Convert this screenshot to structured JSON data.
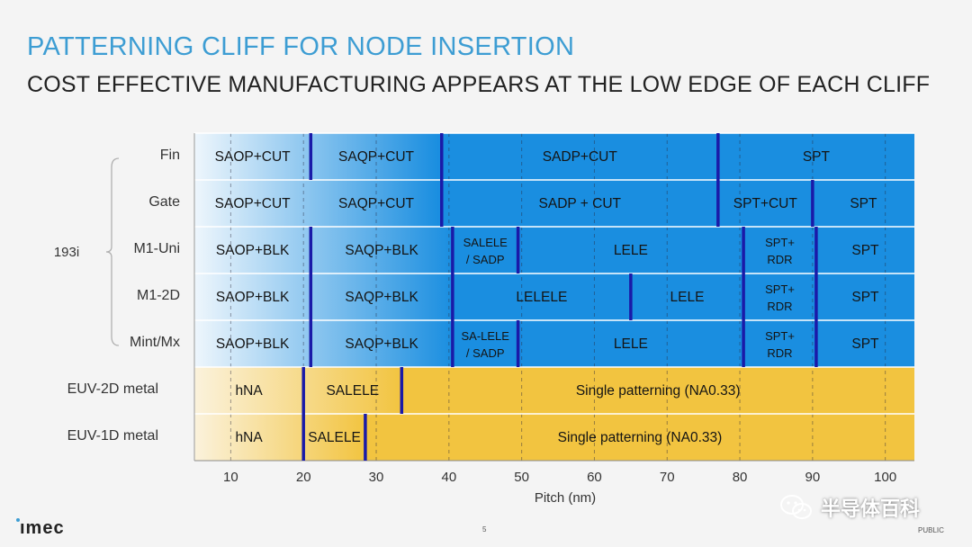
{
  "header": {
    "title": "PATTERNING CLIFF FOR NODE INSERTION",
    "subtitle": "COST EFFECTIVE MANUFACTURING APPEARS AT THE LOW EDGE OF EACH CLIFF"
  },
  "chart_data": {
    "type": "segmented-bar",
    "xlabel": "Pitch (nm)",
    "xlim": [
      5,
      104
    ],
    "xticks": [
      10,
      20,
      30,
      40,
      50,
      60,
      70,
      80,
      90,
      100
    ],
    "group_label": "193i",
    "colors": {
      "blue": "#1a8ee0",
      "light_blue": "#eef6fc",
      "yellow": "#f2c440",
      "light_yellow": "#fbf2dc",
      "boundary": "#1a1aa8"
    },
    "rows": [
      {
        "label": "Fin",
        "group": "193i",
        "scheme": "blue",
        "gradient_end": 38.5,
        "segments": [
          {
            "label": "SAOP+CUT",
            "start": 5,
            "end": 21
          },
          {
            "label": "SAQP+CUT",
            "start": 21,
            "end": 39
          },
          {
            "label": "SADP+CUT",
            "start": 39,
            "end": 77
          },
          {
            "label": "SPT",
            "start": 77,
            "end": 104
          }
        ],
        "boundaries": [
          21,
          39,
          77
        ]
      },
      {
        "label": "Gate",
        "group": "193i",
        "scheme": "blue",
        "gradient_end": 38.5,
        "segments": [
          {
            "label": "SAOP+CUT",
            "start": 5,
            "end": 21
          },
          {
            "label": "SAQP+CUT",
            "start": 21,
            "end": 39
          },
          {
            "label": "SADP + CUT",
            "start": 39,
            "end": 77
          },
          {
            "label": "SPT+CUT",
            "start": 77,
            "end": 90
          },
          {
            "label": "SPT",
            "start": 90,
            "end": 104
          }
        ],
        "boundaries": [
          39,
          77,
          90
        ]
      },
      {
        "label": "M1-Uni",
        "group": "193i",
        "scheme": "blue",
        "gradient_end": 40.5,
        "segments": [
          {
            "label": "SAOP+BLK",
            "start": 5,
            "end": 21
          },
          {
            "label": "SAQP+BLK",
            "start": 21,
            "end": 40.5
          },
          {
            "label": [
              "SALELE",
              "/ SADP"
            ],
            "start": 40.5,
            "end": 49.5
          },
          {
            "label": "LELE",
            "start": 49.5,
            "end": 80.5
          },
          {
            "label": [
              "SPT+",
              "RDR"
            ],
            "start": 80.5,
            "end": 90.5
          },
          {
            "label": "SPT",
            "start": 90.5,
            "end": 104
          }
        ],
        "boundaries": [
          21,
          40.5,
          49.5,
          80.5,
          90.5
        ]
      },
      {
        "label": "M1-2D",
        "group": "193i",
        "scheme": "blue",
        "gradient_end": 40.5,
        "segments": [
          {
            "label": "SAOP+BLK",
            "start": 5,
            "end": 21
          },
          {
            "label": "SAQP+BLK",
            "start": 21,
            "end": 40.5
          },
          {
            "label": "LELELE",
            "start": 40.5,
            "end": 65
          },
          {
            "label": "LELE",
            "start": 65,
            "end": 80.5
          },
          {
            "label": [
              "SPT+",
              "RDR"
            ],
            "start": 80.5,
            "end": 90.5
          },
          {
            "label": "SPT",
            "start": 90.5,
            "end": 104
          }
        ],
        "boundaries": [
          21,
          40.5,
          65,
          80.5,
          90.5
        ]
      },
      {
        "label": "Mint/Mx",
        "group": "193i",
        "scheme": "blue",
        "gradient_end": 40.5,
        "segments": [
          {
            "label": "SAOP+BLK",
            "start": 5,
            "end": 21
          },
          {
            "label": "SAQP+BLK",
            "start": 21,
            "end": 40.5
          },
          {
            "label": [
              "SA-LELE",
              "/ SADP"
            ],
            "start": 40.5,
            "end": 49.5
          },
          {
            "label": "LELE",
            "start": 49.5,
            "end": 80.5
          },
          {
            "label": [
              "SPT+",
              "RDR"
            ],
            "start": 80.5,
            "end": 90.5
          },
          {
            "label": "SPT",
            "start": 90.5,
            "end": 104
          }
        ],
        "boundaries": [
          21,
          40.5,
          49.5,
          80.5,
          90.5
        ]
      },
      {
        "label": "EUV-2D metal",
        "scheme": "yellow",
        "gradient_end": 33.5,
        "segments": [
          {
            "label": "hNA",
            "start": 5,
            "end": 20
          },
          {
            "label": "SALELE",
            "start": 20,
            "end": 33.5
          },
          {
            "label": "Single patterning (NA0.33)",
            "start": 33.5,
            "end": 104
          }
        ],
        "boundaries": [
          20,
          33.5
        ]
      },
      {
        "label": "EUV-1D metal",
        "scheme": "yellow",
        "gradient_end": 28.5,
        "segments": [
          {
            "label": "hNA",
            "start": 5,
            "end": 20
          },
          {
            "label": "SALELE",
            "start": 20,
            "end": 28.5
          },
          {
            "label": "Single patterning (NA0.33)",
            "start": 28.5,
            "end": 104
          }
        ],
        "boundaries": [
          20,
          28.5
        ]
      }
    ]
  },
  "footer": {
    "logo": "ımec",
    "page_number": "5",
    "classification": "PUBLIC",
    "watermark": "半导体百科"
  }
}
